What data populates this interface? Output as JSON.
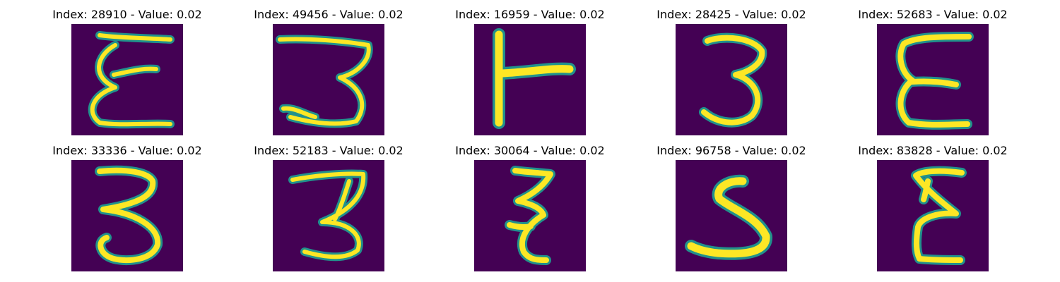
{
  "colors": {
    "background": "#440154",
    "stroke_mid": "#21918c",
    "stroke_core": "#fde725",
    "figure_bg": "#ffffff"
  },
  "panels": [
    {
      "title": "Index: 28910 - Value: 0.02",
      "glyph": "epsilon-like curly stroke shape"
    },
    {
      "title": "Index: 49456 - Value: 0.02",
      "glyph": "handwritten 3"
    },
    {
      "title": "Index: 16959 - Value: 0.02",
      "glyph": "T rotated (vertical bar with right arm)"
    },
    {
      "title": "Index: 28425 - Value: 0.02",
      "glyph": "handwritten 3"
    },
    {
      "title": "Index: 52683 - Value: 0.02",
      "glyph": "epsilon E-like shape"
    },
    {
      "title": "Index: 33336 - Value: 0.02",
      "glyph": "handwritten 3"
    },
    {
      "title": "Index: 52183 - Value: 0.02",
      "glyph": "handwritten 3"
    },
    {
      "title": "Index: 30064 - Value: 0.02",
      "glyph": "narrow epsilon-like zigzag"
    },
    {
      "title": "Index: 96758 - Value: 0.02",
      "glyph": "handwritten 5"
    },
    {
      "title": "Index: 83828 - Value: 0.02",
      "glyph": "epsilon E-like shape"
    }
  ]
}
